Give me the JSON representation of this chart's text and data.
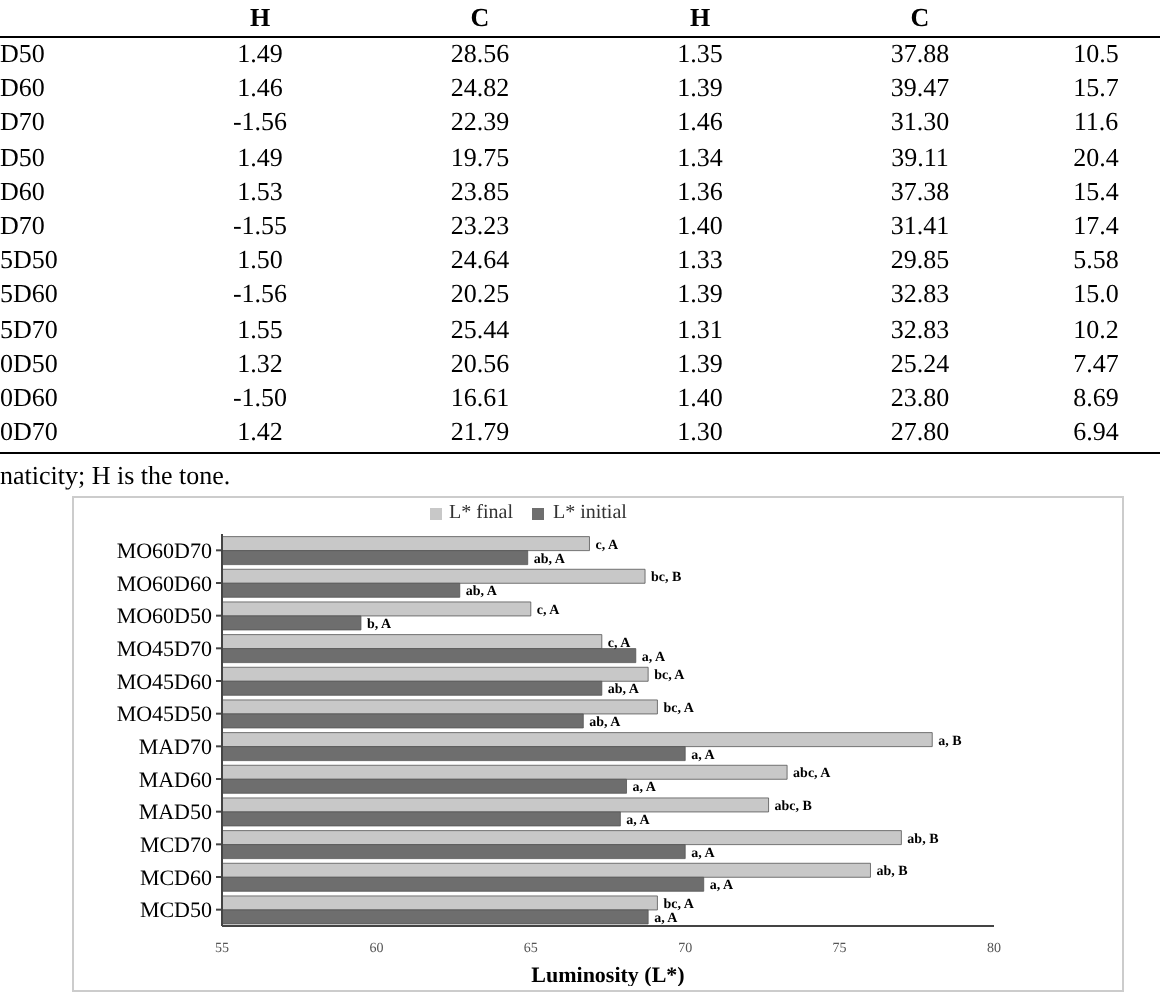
{
  "chart_data": [
    {
      "type": "other",
      "annotations": [
        "H C H C",
        "D50 1.49 28.56 1.35 37.88 10.5",
        "D60 1.46 24.82 1.39 39.47 15.7",
        "D70 -1.56 22.39 1.46 31.30 11.6",
        "D50 1.49 19.75 1.34 39.11 20.4",
        "D60 1.53 23.85 1.36 37.38 15.4",
        "D70 -1.55 23.23 1.40 31.41 17.4",
        "5D50 1.50 24.64 1.33 29.85 5.58",
        "5D60 -1.56 20.25 1.39 32.83 15.0",
        "5D70 1.55 25.44 1.31 32.83 10.2",
        "0D50 1.32 20.56 1.39 25.24 7.47",
        "0D60 -1.50 16.61 1.40 23.80 8.69",
        "0D70 1.42 21.79 1.30 27.80 6.94",
        "naticity; H is the tone."
      ]
    },
    {
      "type": "bar",
      "orientation": "horizontal",
      "xlabel": "Luminosity (L*)",
      "xlim": [
        55,
        80
      ],
      "xticks": [
        55,
        60,
        65,
        70,
        75,
        80
      ],
      "legend": "top",
      "grid": false,
      "categories": [
        "MO60D70",
        "MO60D60",
        "MO60D50",
        "MO45D70",
        "MO45D60",
        "MO45D50",
        "MAD70",
        "MAD60",
        "MAD50",
        "MCD70",
        "MCD60",
        "MCD50"
      ],
      "series": [
        {
          "name": "L* final",
          "color": "#c8c8c8",
          "values": [
            66.9,
            68.7,
            65.0,
            67.3,
            68.8,
            69.1,
            78.0,
            73.3,
            72.7,
            77.0,
            76.0,
            69.1
          ],
          "value_labels": [
            "c, A",
            "bc, B",
            "c, A",
            "c, A",
            "bc, A",
            "bc, A",
            "a, B",
            "abc, A",
            "abc, B",
            "ab, B",
            "ab, B",
            "bc, A"
          ]
        },
        {
          "name": "L* initial",
          "color": "#6e6e6e",
          "values": [
            64.9,
            62.7,
            59.5,
            68.4,
            67.3,
            66.7,
            70.0,
            68.1,
            67.9,
            70.0,
            70.6,
            68.8
          ],
          "value_labels": [
            "ab, A",
            "ab, A",
            "b, A",
            "a, A",
            "ab, A",
            "ab, A",
            "a, A",
            "a, A",
            "a, A",
            "a, A",
            "a, A",
            "a, A"
          ]
        }
      ]
    }
  ]
}
